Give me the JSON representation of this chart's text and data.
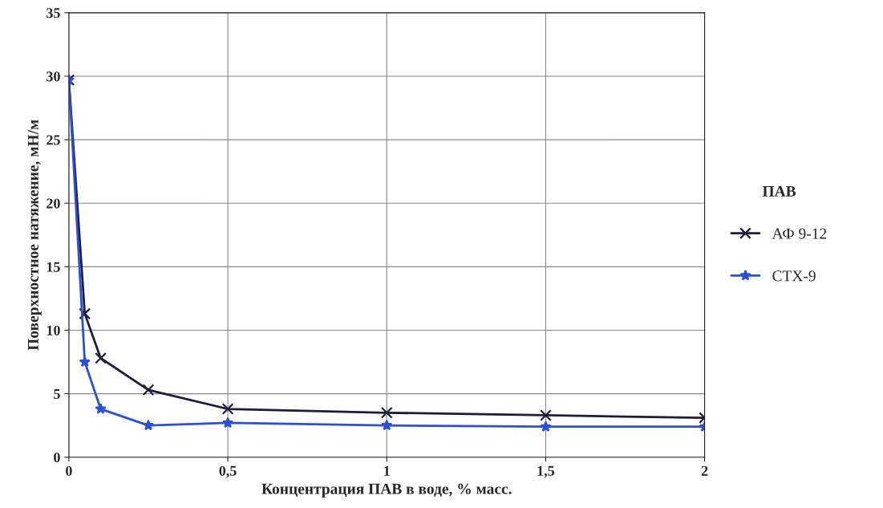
{
  "chart_data": {
    "type": "line",
    "xlabel": "Концентрация ПАВ в воде, % масс.",
    "ylabel": "Поверхностное натяжение, мН/м",
    "legend_title": "ПАВ",
    "legend": "right",
    "grid": true,
    "xlim": [
      0,
      2
    ],
    "xticks": [
      0,
      {
        "value": 0.5,
        "label": "0,5"
      },
      1,
      {
        "value": 1.5,
        "label": "1,5"
      },
      2
    ],
    "ylim": [
      0,
      35
    ],
    "yticks": [
      0,
      5,
      10,
      15,
      20,
      25,
      30,
      35
    ],
    "x": [
      0,
      0.05,
      0.1,
      0.25,
      0.5,
      1,
      1.5,
      2
    ],
    "series": [
      {
        "name": "АФ 9-12",
        "color": "#1c1c3c",
        "marker": "cross",
        "values": [
          29.7,
          11.3,
          7.8,
          5.3,
          3.8,
          3.5,
          3.3,
          3.1
        ]
      },
      {
        "name": "СТХ-9",
        "color": "#2b4fd8",
        "marker": "star",
        "values": [
          29.7,
          7.5,
          3.8,
          2.5,
          2.7,
          2.5,
          2.4,
          2.4
        ]
      }
    ]
  }
}
